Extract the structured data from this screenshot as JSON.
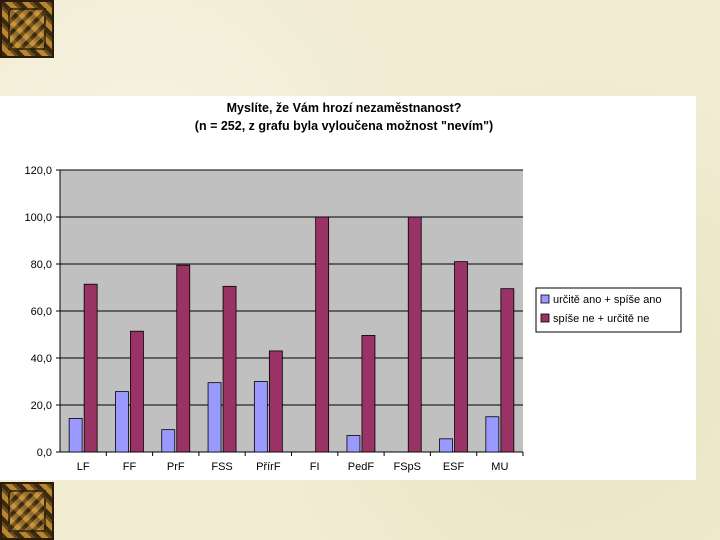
{
  "chart_data": {
    "type": "bar",
    "title": "Myslíte, že Vám hrozí nezaměstnanost?",
    "subtitle": "(n = 252, z grafu byla vyloučena možnost \"nevím\")",
    "categories": [
      "LF",
      "FF",
      "PrF",
      "FSS",
      "PřírF",
      "FI",
      "PedF",
      "FSpS",
      "ESF",
      "MU"
    ],
    "series": [
      {
        "name": "určitě ano + spíše ano",
        "color": "#9999ff",
        "values": [
          14.3,
          25.7,
          9.5,
          29.5,
          30.0,
          0,
          7.0,
          0,
          5.6,
          15.0
        ]
      },
      {
        "name": "spíše ne + určitě ne",
        "color": "#993366",
        "values": [
          71.4,
          51.4,
          79.5,
          70.5,
          43.0,
          100.0,
          49.6,
          100.0,
          81.0,
          69.5
        ]
      }
    ],
    "ylim": [
      0,
      120
    ],
    "yticks": [
      "0,0",
      "20,0",
      "40,0",
      "60,0",
      "80,0",
      "100,0",
      "120,0"
    ],
    "grid": true,
    "legend": "right",
    "plot_background": "#c0c0c0"
  }
}
